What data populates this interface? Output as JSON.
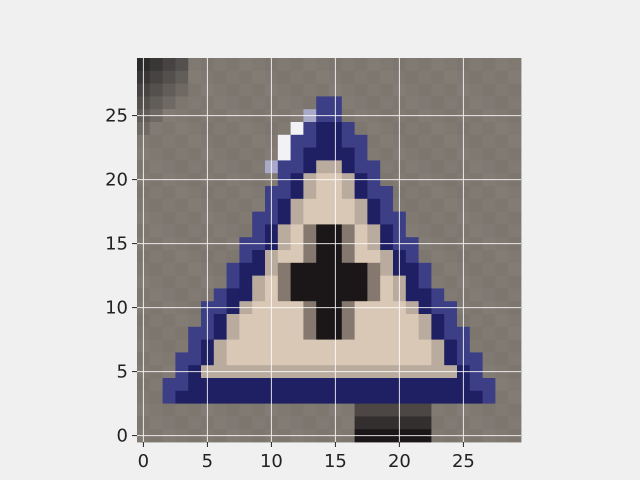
{
  "figure": {
    "background": "#f0f0f0",
    "image_description_icon": "triangular-warning-sign-icon",
    "grid": true,
    "grid_color": "#ffffff"
  },
  "image": {
    "rows": 30,
    "cols": 30,
    "palette": {
      "gray": "#7c766f",
      "dark": "#2c2a2b",
      "navy": "#1f1f63",
      "blue": "#3d3f86",
      "cream": "#dac8b6",
      "white": "#f1f1f6",
      "black": "#1b1718"
    }
  },
  "axes": {
    "x_ticks": [
      {
        "value": 0,
        "label": "0"
      },
      {
        "value": 5,
        "label": "5"
      },
      {
        "value": 10,
        "label": "10"
      },
      {
        "value": 15,
        "label": "15"
      },
      {
        "value": 20,
        "label": "20"
      },
      {
        "value": 25,
        "label": "25"
      }
    ],
    "y_ticks": [
      {
        "value": 0,
        "label": "0"
      },
      {
        "value": 5,
        "label": "5"
      },
      {
        "value": 10,
        "label": "10"
      },
      {
        "value": 15,
        "label": "15"
      },
      {
        "value": 20,
        "label": "20"
      },
      {
        "value": 25,
        "label": "25"
      }
    ],
    "xlim": [
      -0.5,
      29.5
    ],
    "ylim": [
      29.5,
      -0.5
    ]
  }
}
